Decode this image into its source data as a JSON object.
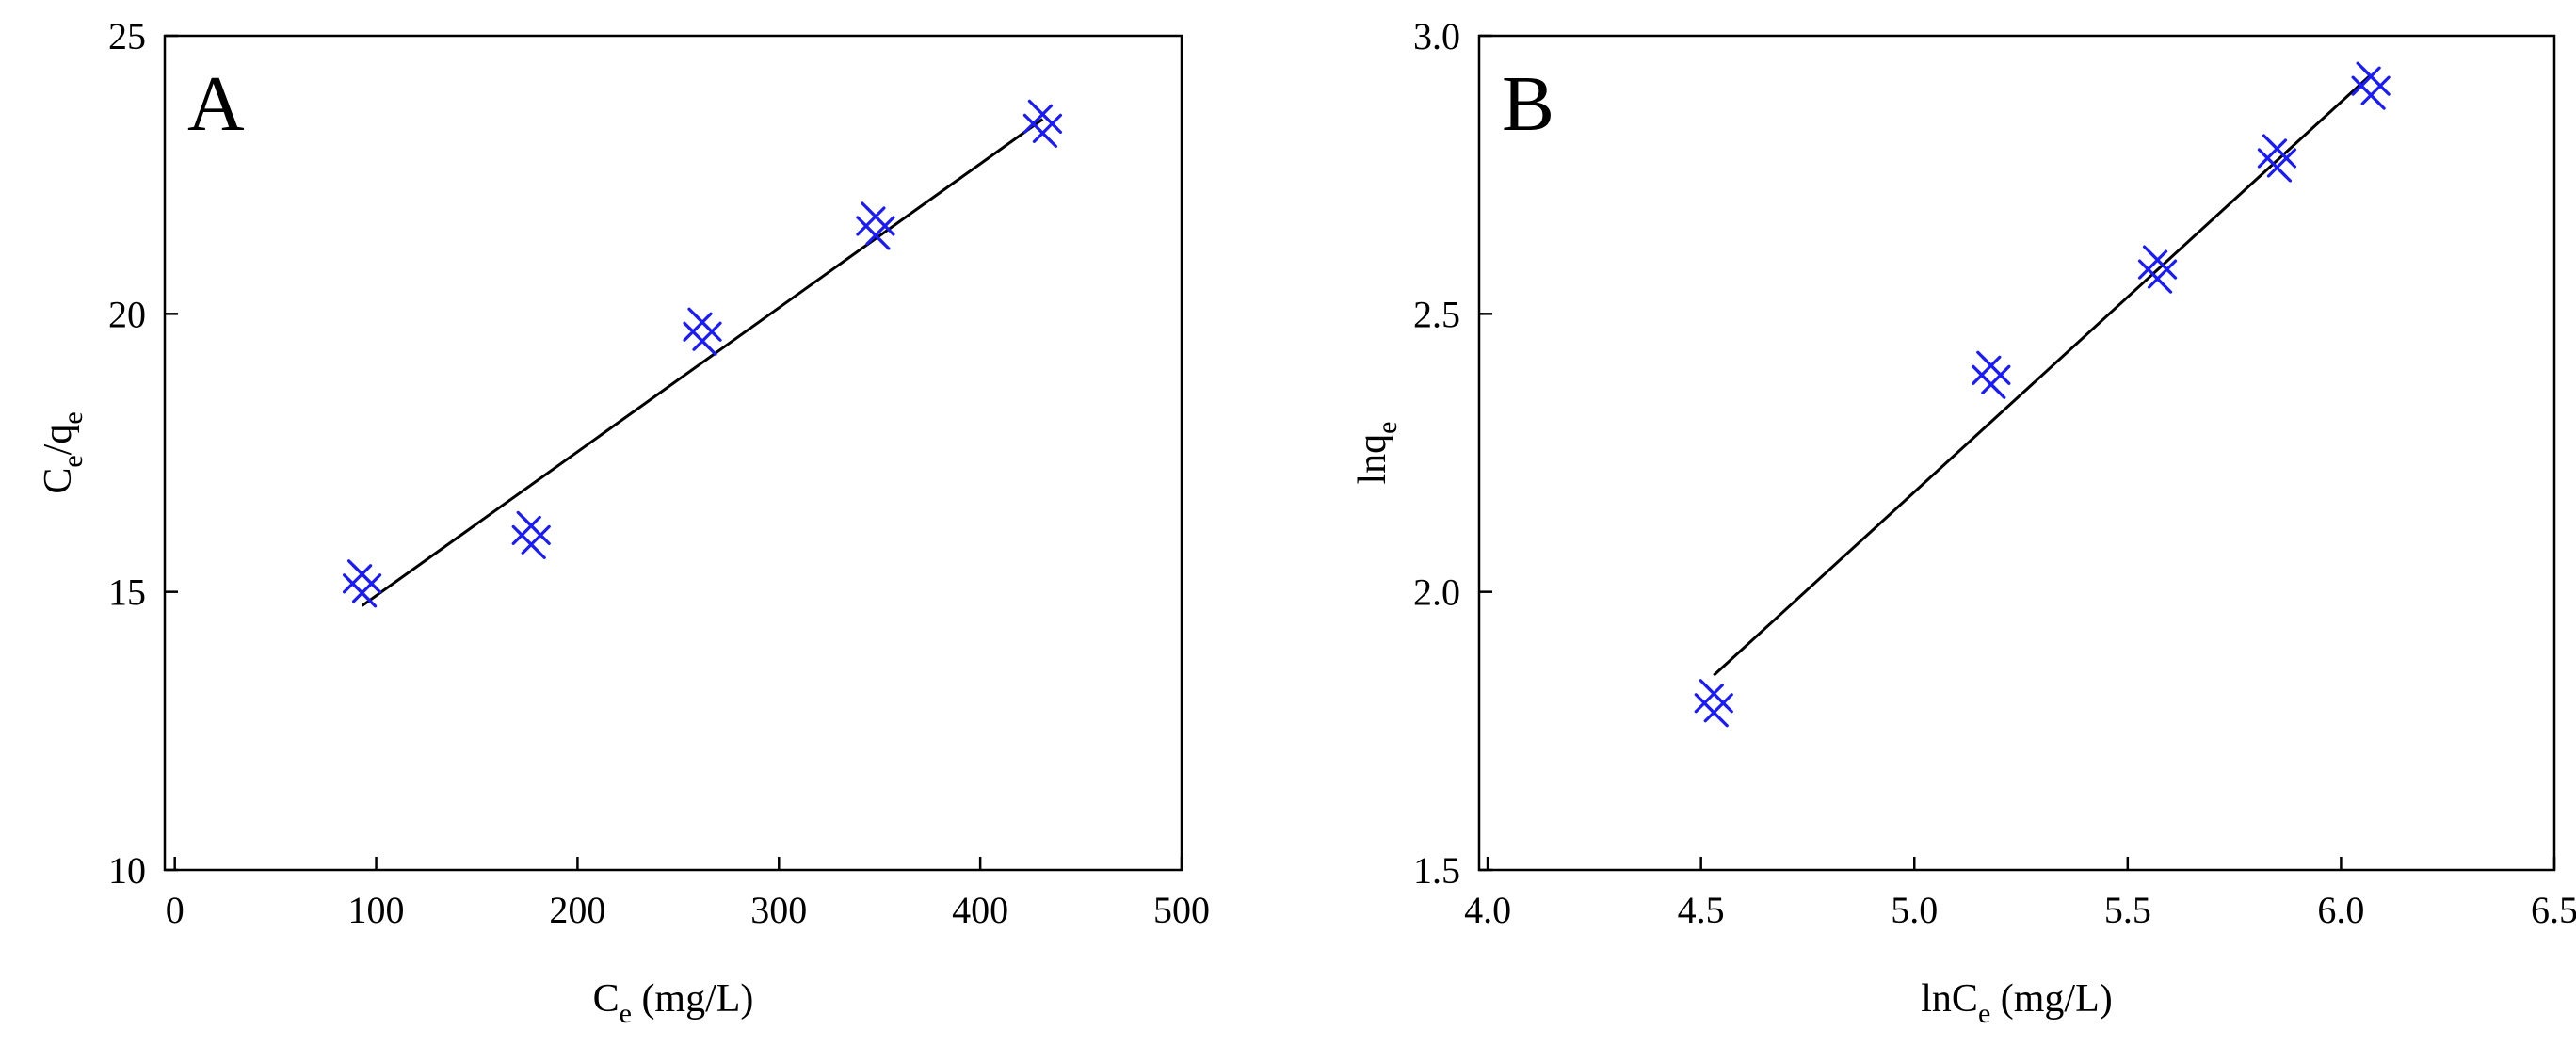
{
  "colors": {
    "marker": "#1a1aff",
    "fit_line": "#000000",
    "frame": "#000000"
  },
  "chart_data": [
    {
      "type": "scatter",
      "panel_label": "A",
      "xlabel": {
        "main": "C",
        "sub": "e",
        "tail": " (mg/L)"
      },
      "ylabel": {
        "main": "C",
        "sub": "e",
        "mid": "/q",
        "sub2": "e"
      },
      "xlim": [
        -5,
        500
      ],
      "ylim": [
        10,
        25
      ],
      "xticks": [
        0,
        100,
        200,
        300,
        400,
        500
      ],
      "xtick_labels": [
        "0",
        "100",
        "200",
        "300",
        "400",
        "500"
      ],
      "yticks": [
        10,
        15,
        20,
        25
      ],
      "ytick_labels": [
        "10",
        "15",
        "20",
        "25"
      ],
      "grid": false,
      "series": [
        {
          "x": [
            93,
            177,
            262,
            348,
            431
          ],
          "y": [
            15.15,
            16.02,
            19.68,
            21.58,
            23.42
          ]
        }
      ],
      "fit_line": {
        "x": [
          93,
          431
        ],
        "y": [
          14.75,
          23.5
        ]
      }
    },
    {
      "type": "scatter",
      "panel_label": "B",
      "xlabel": {
        "main": "lnC",
        "sub": "e",
        "tail": " (mg/L)"
      },
      "ylabel": {
        "main": "lnq",
        "sub": "e"
      },
      "xlim": [
        3.98,
        6.5
      ],
      "ylim": [
        1.5,
        3.0
      ],
      "xticks": [
        4.0,
        4.5,
        5.0,
        5.5,
        6.0,
        6.5
      ],
      "xtick_labels": [
        "4.0",
        "4.5",
        "5.0",
        "5.5",
        "6.0",
        "6.5"
      ],
      "yticks": [
        1.5,
        2.0,
        2.5,
        3.0
      ],
      "ytick_labels": [
        "1.5",
        "2.0",
        "2.5",
        "3.0"
      ],
      "grid": false,
      "series": [
        {
          "x": [
            4.53,
            5.18,
            5.57,
            5.85,
            6.07
          ],
          "y": [
            1.8,
            2.39,
            2.58,
            2.78,
            2.91
          ]
        }
      ],
      "fit_line": {
        "x": [
          4.53,
          6.07
        ],
        "y": [
          1.85,
          2.93
        ]
      }
    }
  ]
}
